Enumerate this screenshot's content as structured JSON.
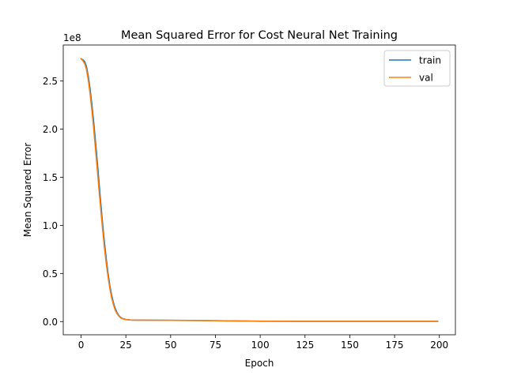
{
  "chart_data": {
    "type": "line",
    "title": "Mean Squared Error for Cost Neural Net Training",
    "xlabel": "Epoch",
    "ylabel": "Mean Squared Error",
    "y_offset_label": "1e8",
    "xlim": [
      -9.95,
      208.95
    ],
    "ylim": [
      -0.137,
      2.873
    ],
    "x_ticks": [
      0,
      25,
      50,
      75,
      100,
      125,
      150,
      175,
      200
    ],
    "x_tick_labels": [
      "0",
      "25",
      "50",
      "75",
      "100",
      "125",
      "150",
      "175",
      "200"
    ],
    "y_ticks": [
      0.0,
      0.5,
      1.0,
      1.5,
      2.0,
      2.5
    ],
    "y_tick_labels": [
      "0.0",
      "0.5",
      "1.0",
      "1.5",
      "2.0",
      "2.5"
    ],
    "y_unit_scale": "1e8",
    "grid": false,
    "legend_position": "upper right",
    "series": [
      {
        "name": "train",
        "color": "#1f77b4",
        "points": [
          [
            0,
            2.73
          ],
          [
            1,
            2.72
          ],
          [
            2,
            2.7
          ],
          [
            3,
            2.65
          ],
          [
            4,
            2.55
          ],
          [
            5,
            2.42
          ],
          [
            6,
            2.26
          ],
          [
            7,
            2.08
          ],
          [
            8,
            1.88
          ],
          [
            9,
            1.67
          ],
          [
            10,
            1.45
          ],
          [
            11,
            1.23
          ],
          [
            12,
            1.02
          ],
          [
            13,
            0.83
          ],
          [
            14,
            0.66
          ],
          [
            15,
            0.51
          ],
          [
            16,
            0.38
          ],
          [
            17,
            0.28
          ],
          [
            18,
            0.2
          ],
          [
            19,
            0.14
          ],
          [
            20,
            0.095
          ],
          [
            21,
            0.065
          ],
          [
            22,
            0.045
          ],
          [
            23,
            0.033
          ],
          [
            25,
            0.022
          ],
          [
            28,
            0.016
          ],
          [
            30,
            0.015
          ],
          [
            40,
            0.014
          ],
          [
            50,
            0.013
          ],
          [
            60,
            0.012
          ],
          [
            70,
            0.01
          ],
          [
            80,
            0.008
          ],
          [
            90,
            0.006
          ],
          [
            100,
            0.004
          ],
          [
            125,
            0.003
          ],
          [
            150,
            0.003
          ],
          [
            175,
            0.003
          ],
          [
            199,
            0.003
          ]
        ]
      },
      {
        "name": "val",
        "color": "#ff7f0e",
        "points": [
          [
            0,
            2.73
          ],
          [
            1,
            2.71
          ],
          [
            2,
            2.68
          ],
          [
            3,
            2.62
          ],
          [
            4,
            2.51
          ],
          [
            5,
            2.37
          ],
          [
            6,
            2.2
          ],
          [
            7,
            2.01
          ],
          [
            8,
            1.8
          ],
          [
            9,
            1.59
          ],
          [
            10,
            1.37
          ],
          [
            11,
            1.16
          ],
          [
            12,
            0.96
          ],
          [
            13,
            0.77
          ],
          [
            14,
            0.61
          ],
          [
            15,
            0.47
          ],
          [
            16,
            0.35
          ],
          [
            17,
            0.25
          ],
          [
            18,
            0.18
          ],
          [
            19,
            0.12
          ],
          [
            20,
            0.085
          ],
          [
            21,
            0.058
          ],
          [
            22,
            0.04
          ],
          [
            23,
            0.03
          ],
          [
            25,
            0.02
          ],
          [
            28,
            0.016
          ],
          [
            30,
            0.015
          ],
          [
            40,
            0.014
          ],
          [
            50,
            0.013
          ],
          [
            60,
            0.012
          ],
          [
            70,
            0.01
          ],
          [
            80,
            0.008
          ],
          [
            90,
            0.006
          ],
          [
            100,
            0.004
          ],
          [
            125,
            0.003
          ],
          [
            150,
            0.003
          ],
          [
            175,
            0.003
          ],
          [
            199,
            0.003
          ]
        ]
      }
    ]
  }
}
